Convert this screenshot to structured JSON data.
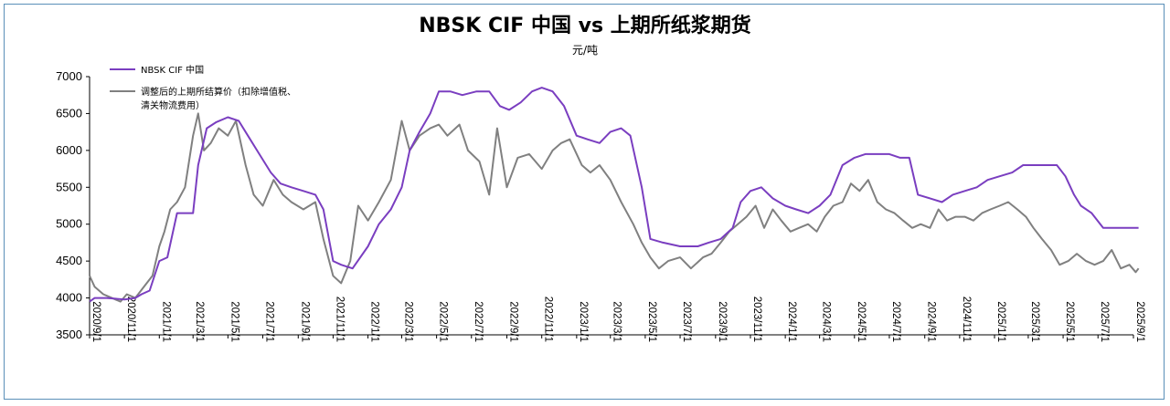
{
  "chart_data": {
    "type": "line",
    "title": "NBSK CIF 中国 vs 上期所纸浆期货",
    "subtitle": "元/吨",
    "ylim": [
      3500,
      7000
    ],
    "y_ticks": [
      "7000",
      "6500",
      "6000",
      "5500",
      "5000",
      "4500",
      "4000",
      "3500"
    ],
    "x_ticks": [
      "2020/9/1",
      "2020/11/1",
      "2021/1/1",
      "2021/3/1",
      "2021/5/1",
      "2021/7/1",
      "2021/9/1",
      "2021/11/1",
      "2022/1/1",
      "2022/3/1",
      "2022/5/1",
      "2022/7/1",
      "2022/9/1",
      "2022/11/1",
      "2023/1/1",
      "2023/3/1",
      "2023/5/1",
      "2023/7/1",
      "2023/9/1",
      "2023/11/1",
      "2024/1/1",
      "2024/3/1",
      "2024/5/1",
      "2024/7/1",
      "2024/9/1",
      "2024/11/1",
      "2025/1/1",
      "2025/3/1",
      "2025/5/1",
      "2025/7/1",
      "2025/9/1"
    ],
    "grid": false,
    "legend_position": "top-left",
    "series": [
      {
        "name": "NBSK CIF 中国",
        "color": "#7a3ec0",
        "values": [
          [
            "2020/9/1",
            3950
          ],
          [
            "2020/9/10",
            4000
          ],
          [
            "2020/10/1",
            4000
          ],
          [
            "2020/11/1",
            3980
          ],
          [
            "2020/11/20",
            4000
          ],
          [
            "2020/12/1",
            4050
          ],
          [
            "2020/12/15",
            4100
          ],
          [
            "2021/1/1",
            4500
          ],
          [
            "2021/1/15",
            4550
          ],
          [
            "2021/2/1",
            5150
          ],
          [
            "2021/2/20",
            5150
          ],
          [
            "2021/3/1",
            5150
          ],
          [
            "2021/3/10",
            5800
          ],
          [
            "2021/3/25",
            6300
          ],
          [
            "2021/4/10",
            6380
          ],
          [
            "2021/5/1",
            6450
          ],
          [
            "2021/5/20",
            6400
          ],
          [
            "2021/6/5",
            6200
          ],
          [
            "2021/6/25",
            5950
          ],
          [
            "2021/7/15",
            5700
          ],
          [
            "2021/8/1",
            5550
          ],
          [
            "2021/8/20",
            5500
          ],
          [
            "2021/9/10",
            5450
          ],
          [
            "2021/10/1",
            5400
          ],
          [
            "2021/10/15",
            5200
          ],
          [
            "2021/11/1",
            4500
          ],
          [
            "2021/11/15",
            4450
          ],
          [
            "2021/12/5",
            4400
          ],
          [
            "2022/1/1",
            4700
          ],
          [
            "2022/1/20",
            5000
          ],
          [
            "2022/2/10",
            5200
          ],
          [
            "2022/3/1",
            5500
          ],
          [
            "2022/3/15",
            6000
          ],
          [
            "2022/4/1",
            6250
          ],
          [
            "2022/4/20",
            6500
          ],
          [
            "2022/5/5",
            6800
          ],
          [
            "2022/5/25",
            6800
          ],
          [
            "2022/6/15",
            6750
          ],
          [
            "2022/7/10",
            6800
          ],
          [
            "2022/8/1",
            6800
          ],
          [
            "2022/8/20",
            6600
          ],
          [
            "2022/9/5",
            6550
          ],
          [
            "2022/9/25",
            6650
          ],
          [
            "2022/10/15",
            6800
          ],
          [
            "2022/11/1",
            6850
          ],
          [
            "2022/11/20",
            6800
          ],
          [
            "2022/12/10",
            6600
          ],
          [
            "2023/1/1",
            6200
          ],
          [
            "2023/1/20",
            6150
          ],
          [
            "2023/2/10",
            6100
          ],
          [
            "2023/3/1",
            6250
          ],
          [
            "2023/3/20",
            6300
          ],
          [
            "2023/4/5",
            6200
          ],
          [
            "2023/4/25",
            5500
          ],
          [
            "2023/5/10",
            4800
          ],
          [
            "2023/6/1",
            4750
          ],
          [
            "2023/7/1",
            4700
          ],
          [
            "2023/8/1",
            4700
          ],
          [
            "2023/8/20",
            4750
          ],
          [
            "2023/9/10",
            4800
          ],
          [
            "2023/10/1",
            4950
          ],
          [
            "2023/10/15",
            5300
          ],
          [
            "2023/11/1",
            5450
          ],
          [
            "2023/11/20",
            5500
          ],
          [
            "2023/12/10",
            5350
          ],
          [
            "2024/1/1",
            5250
          ],
          [
            "2024/1/20",
            5200
          ],
          [
            "2024/2/10",
            5150
          ],
          [
            "2024/3/1",
            5250
          ],
          [
            "2024/3/20",
            5400
          ],
          [
            "2024/4/10",
            5800
          ],
          [
            "2024/5/1",
            5900
          ],
          [
            "2024/5/20",
            5950
          ],
          [
            "2024/6/10",
            5950
          ],
          [
            "2024/7/1",
            5950
          ],
          [
            "2024/7/20",
            5900
          ],
          [
            "2024/8/5",
            5900
          ],
          [
            "2024/8/20",
            5400
          ],
          [
            "2024/9/10",
            5350
          ],
          [
            "2024/10/1",
            5300
          ],
          [
            "2024/10/20",
            5400
          ],
          [
            "2024/11/10",
            5450
          ],
          [
            "2024/12/1",
            5500
          ],
          [
            "2024/12/20",
            5600
          ],
          [
            "2025/1/10",
            5650
          ],
          [
            "2025/2/1",
            5700
          ],
          [
            "2025/2/20",
            5800
          ],
          [
            "2025/3/10",
            5800
          ],
          [
            "2025/4/1",
            5800
          ],
          [
            "2025/4/20",
            5800
          ],
          [
            "2025/5/5",
            5650
          ],
          [
            "2025/5/20",
            5400
          ],
          [
            "2025/6/1",
            5250
          ],
          [
            "2025/6/20",
            5150
          ],
          [
            "2025/7/10",
            4950
          ],
          [
            "2025/8/1",
            4950
          ],
          [
            "2025/8/20",
            4950
          ],
          [
            "2025/9/1",
            4950
          ],
          [
            "2025/9/10",
            4950
          ]
        ]
      },
      {
        "name": "调整后的上期所结算价（扣除增值税、清关物流费用）",
        "color": "#808080",
        "values": [
          [
            "2020/9/1",
            4300
          ],
          [
            "2020/9/10",
            4150
          ],
          [
            "2020/9/25",
            4050
          ],
          [
            "2020/10/10",
            4000
          ],
          [
            "2020/10/25",
            3950
          ],
          [
            "2020/11/5",
            4050
          ],
          [
            "2020/11/20",
            4000
          ],
          [
            "2020/12/5",
            4150
          ],
          [
            "2020/12/20",
            4300
          ],
          [
            "2021/1/1",
            4700
          ],
          [
            "2021/1/10",
            4900
          ],
          [
            "2021/1/20",
            5200
          ],
          [
            "2021/2/1",
            5300
          ],
          [
            "2021/2/15",
            5500
          ],
          [
            "2021/3/1",
            6200
          ],
          [
            "2021/3/10",
            6500
          ],
          [
            "2021/3/20",
            6000
          ],
          [
            "2021/4/1",
            6100
          ],
          [
            "2021/4/15",
            6300
          ],
          [
            "2021/5/1",
            6200
          ],
          [
            "2021/5/15",
            6400
          ],
          [
            "2021/6/1",
            5800
          ],
          [
            "2021/6/15",
            5400
          ],
          [
            "2021/7/1",
            5250
          ],
          [
            "2021/7/20",
            5600
          ],
          [
            "2021/8/5",
            5400
          ],
          [
            "2021/8/20",
            5300
          ],
          [
            "2021/9/10",
            5200
          ],
          [
            "2021/10/1",
            5300
          ],
          [
            "2021/10/15",
            4800
          ],
          [
            "2021/11/1",
            4300
          ],
          [
            "2021/11/15",
            4200
          ],
          [
            "2021/12/1",
            4500
          ],
          [
            "2021/12/15",
            5250
          ],
          [
            "2022/1/1",
            5050
          ],
          [
            "2022/1/20",
            5300
          ],
          [
            "2022/2/10",
            5600
          ],
          [
            "2022/3/1",
            6400
          ],
          [
            "2022/3/15",
            6000
          ],
          [
            "2022/4/1",
            6200
          ],
          [
            "2022/4/20",
            6300
          ],
          [
            "2022/5/5",
            6350
          ],
          [
            "2022/5/20",
            6200
          ],
          [
            "2022/6/10",
            6350
          ],
          [
            "2022/6/25",
            6000
          ],
          [
            "2022/7/15",
            5850
          ],
          [
            "2022/8/1",
            5400
          ],
          [
            "2022/8/15",
            6300
          ],
          [
            "2022/9/1",
            5500
          ],
          [
            "2022/9/20",
            5900
          ],
          [
            "2022/10/10",
            5950
          ],
          [
            "2022/11/1",
            5750
          ],
          [
            "2022/11/20",
            6000
          ],
          [
            "2022/12/5",
            6100
          ],
          [
            "2022/12/20",
            6150
          ],
          [
            "2023/1/10",
            5800
          ],
          [
            "2023/1/25",
            5700
          ],
          [
            "2023/2/10",
            5800
          ],
          [
            "2023/3/1",
            5600
          ],
          [
            "2023/3/20",
            5300
          ],
          [
            "2023/4/10",
            5000
          ],
          [
            "2023/4/25",
            4750
          ],
          [
            "2023/5/10",
            4550
          ],
          [
            "2023/5/25",
            4400
          ],
          [
            "2023/6/10",
            4500
          ],
          [
            "2023/7/1",
            4550
          ],
          [
            "2023/7/20",
            4400
          ],
          [
            "2023/8/10",
            4550
          ],
          [
            "2023/8/25",
            4600
          ],
          [
            "2023/9/10",
            4750
          ],
          [
            "2023/9/25",
            4900
          ],
          [
            "2023/10/10",
            5000
          ],
          [
            "2023/10/25",
            5100
          ],
          [
            "2023/11/10",
            5250
          ],
          [
            "2023/11/25",
            4950
          ],
          [
            "2023/12/10",
            5200
          ],
          [
            "2023/12/25",
            5050
          ],
          [
            "2024/1/10",
            4900
          ],
          [
            "2024/1/25",
            4950
          ],
          [
            "2024/2/10",
            5000
          ],
          [
            "2024/2/25",
            4900
          ],
          [
            "2024/3/10",
            5100
          ],
          [
            "2024/3/25",
            5250
          ],
          [
            "2024/4/10",
            5300
          ],
          [
            "2024/4/25",
            5550
          ],
          [
            "2024/5/10",
            5450
          ],
          [
            "2024/5/25",
            5600
          ],
          [
            "2024/6/10",
            5300
          ],
          [
            "2024/6/25",
            5200
          ],
          [
            "2024/7/10",
            5150
          ],
          [
            "2024/7/25",
            5050
          ],
          [
            "2024/8/10",
            4950
          ],
          [
            "2024/8/25",
            5000
          ],
          [
            "2024/9/10",
            4950
          ],
          [
            "2024/9/25",
            5200
          ],
          [
            "2024/10/10",
            5050
          ],
          [
            "2024/10/25",
            5100
          ],
          [
            "2024/11/10",
            5100
          ],
          [
            "2024/11/25",
            5050
          ],
          [
            "2024/12/10",
            5150
          ],
          [
            "2024/12/25",
            5200
          ],
          [
            "2025/1/10",
            5250
          ],
          [
            "2025/1/25",
            5300
          ],
          [
            "2025/2/10",
            5200
          ],
          [
            "2025/2/25",
            5100
          ],
          [
            "2025/3/10",
            4950
          ],
          [
            "2025/3/25",
            4800
          ],
          [
            "2025/4/10",
            4650
          ],
          [
            "2025/4/25",
            4450
          ],
          [
            "2025/5/10",
            4500
          ],
          [
            "2025/5/25",
            4600
          ],
          [
            "2025/6/10",
            4500
          ],
          [
            "2025/6/25",
            4450
          ],
          [
            "2025/7/10",
            4500
          ],
          [
            "2025/7/25",
            4650
          ],
          [
            "2025/8/10",
            4400
          ],
          [
            "2025/8/25",
            4450
          ],
          [
            "2025/9/5",
            4350
          ],
          [
            "2025/9/10",
            4400
          ]
        ]
      }
    ]
  }
}
